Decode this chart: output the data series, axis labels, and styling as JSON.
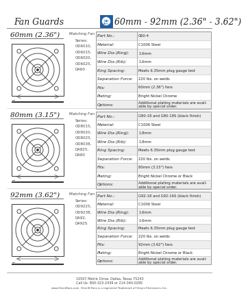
{
  "title_left": "Fan Guards",
  "title_right": "60mm - 92mm (2.36\" - 3.62\")",
  "background_color": "#ffffff",
  "sections": [
    {
      "size_label": "60mm (2.36\")",
      "series_values": [
        "OD6010,",
        "OD6015,",
        "OD6020,",
        "OD6025,",
        "DA60"
      ],
      "rows": [
        [
          "Part No.:",
          "G60-4"
        ],
        [
          "Material:",
          "C1006 Steel"
        ],
        [
          "Wire Dia (Ring):",
          "1.6mm"
        ],
        [
          "Wire Dia (Rib):",
          "1.6mm"
        ],
        [
          "Ring Spacing:",
          "Meets 6.35mm plug gauge test"
        ],
        [
          "Separation Force:",
          "220 lbs. on welds"
        ],
        [
          "Fits:",
          "60mm (2.36\") fans"
        ],
        [
          "Plating:",
          "Bright Nickel Chrome"
        ],
        [
          "Options:",
          "Additional plating materials are avail-\nable by special order."
        ]
      ]
    },
    {
      "size_label": "80mm (3.15\")",
      "series_values": [
        "OD8015,",
        "OD8020,",
        "OD8025,",
        "OD8038,",
        "DA825,",
        "DA80"
      ],
      "rows": [
        [
          "Part No.:",
          "G80-18 and G80-18S (black finish)"
        ],
        [
          "Material:",
          "C1006 Steel"
        ],
        [
          "Wire Dia (Ring):",
          "1.8mm"
        ],
        [
          "Wire Dia (Rib):",
          "1.8mm"
        ],
        [
          "Ring Spacing:",
          "Meets 6.35mm plug gauge test"
        ],
        [
          "Separation Force:",
          "220 lbs. on welds"
        ],
        [
          "Fits:",
          "80mm (3.15\") fans"
        ],
        [
          "Plating:",
          "Bright Nickel Chrome or Black"
        ],
        [
          "Options:",
          "Additional plating materials are avail-\nable by special order."
        ]
      ]
    },
    {
      "size_label": "92mm (3.62\")",
      "series_values": [
        "OD9225,",
        "OD9238,",
        "DA92,",
        "DA92S"
      ],
      "rows": [
        [
          "Part No.:",
          "G92-18 and G92-16S (black finish)"
        ],
        [
          "Material:",
          "C1006 Steel"
        ],
        [
          "Wire Dia (Ring):",
          "1.6mm"
        ],
        [
          "Wire Dia (Rib):",
          "1.6mm"
        ],
        [
          "Ring Spacing:",
          "Meets 6.35mm plug gauge test"
        ],
        [
          "Separation Force:",
          "220 lbs. on welds"
        ],
        [
          "Fits:",
          "92mm (3.62\") fans"
        ],
        [
          "Plating:",
          "Bright Nickel Chrome or Black"
        ],
        [
          "Options:",
          "Additional plating materials are avail-\nable by special order."
        ]
      ]
    }
  ],
  "footer_line1": "10507 Metric Drive, Dallas, Texas 75243",
  "footer_line2": "Call Us: 800-323-2439 or 214-340-0295",
  "footer_line3": "www.OmniDans.com  OmniD-Fans is a registered Trademark of Omyin Electronics, Inc."
}
